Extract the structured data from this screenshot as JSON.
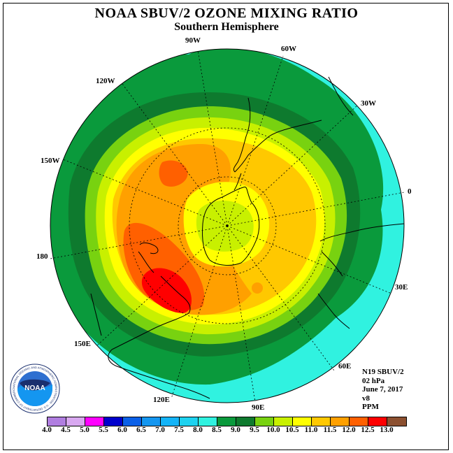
{
  "title": "NOAA SBUV/2 OZONE MIXING RATIO",
  "subtitle": "Southern Hemisphere",
  "logo": {
    "text": "NOAA",
    "ring_text": "NATIONAL OCEANIC AND ATMOSPHERIC ADMINISTRATION · U.S. DEPARTMENT OF COMMERCE"
  },
  "longitude_labels": {
    "lon_90w": "90W",
    "lon_60w": "60W",
    "lon_120w": "120W",
    "lon_30w": "30W",
    "lon_150w": "150W",
    "lon_0": "0",
    "lon_180": "180",
    "lon_30e": "30E",
    "lon_150e": "150E",
    "lon_60e": "60E",
    "lon_120e": "120E",
    "lon_90e": "90E"
  },
  "info": {
    "satellite": "N19 SBUV/2",
    "level": "02 hPa",
    "date": "June 7, 2017",
    "version": "v8",
    "units": "PPM"
  },
  "colorbar": {
    "ticks": [
      "4.0",
      "4.5",
      "5.0",
      "5.5",
      "6.0",
      "6.5",
      "7.0",
      "7.5",
      "8.0",
      "8.5",
      "9.0",
      "9.5",
      "10.0",
      "10.5",
      "11.0",
      "11.5",
      "12.0",
      "12.5",
      "13.0"
    ],
    "colors": [
      "#b07ee0",
      "#d8a8f0",
      "#ff00ff",
      "#0000cc",
      "#0a60e8",
      "#1496f0",
      "#14b4f8",
      "#1ed2f0",
      "#30f2e0",
      "#0a9a3c",
      "#0e7a2e",
      "#78d210",
      "#c8f000",
      "#ffff00",
      "#ffc800",
      "#ffa000",
      "#ff6000",
      "#ff0000",
      "#8c5030"
    ]
  },
  "map_field": {
    "rings": [
      {
        "level": "8.0-8.5",
        "color": "#30f2e0"
      },
      {
        "level": "8.5-9.0",
        "color": "#0a9a3c"
      },
      {
        "level": "9.0-9.5",
        "color": "#0e7a2e"
      },
      {
        "level": "9.5-10.0",
        "color": "#78d210"
      },
      {
        "level": "10.0-10.5",
        "color": "#c8f000"
      },
      {
        "level": "10.5-11.0",
        "color": "#ffff00"
      },
      {
        "level": "11.0-11.5",
        "color": "#ffc800"
      },
      {
        "level": "11.5-12.0",
        "color": "#ffa000"
      },
      {
        "level": "12.0-12.5",
        "color": "#ff6000"
      },
      {
        "level": "12.5-13.0",
        "color": "#ff0000"
      }
    ]
  }
}
